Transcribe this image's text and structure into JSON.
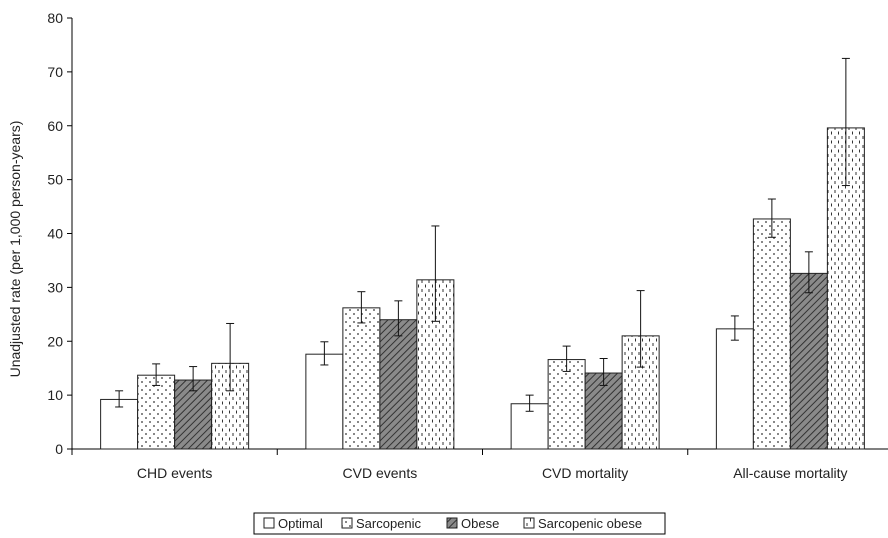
{
  "chart_data": {
    "type": "bar",
    "title": "",
    "xlabel": "",
    "ylabel": "Unadjusted rate (per 1,000 person-years)",
    "ylim": [
      0,
      80
    ],
    "yticks": [
      0,
      10,
      20,
      30,
      40,
      50,
      60,
      70,
      80
    ],
    "grid": false,
    "legend_position": "bottom",
    "categories": [
      "CHD events",
      "CVD events",
      "CVD mortality",
      "All-cause mortality"
    ],
    "series": [
      {
        "name": "Optimal",
        "pattern": "plain",
        "color": "#ffffff",
        "values": [
          9.2,
          17.6,
          8.4,
          22.3
        ],
        "error_low": [
          7.8,
          15.6,
          7.0,
          20.2
        ],
        "error_high": [
          10.8,
          19.9,
          10.0,
          24.7
        ]
      },
      {
        "name": "Sarcopenic",
        "pattern": "dots",
        "color": "#ffffff",
        "values": [
          13.7,
          26.2,
          16.6,
          42.7
        ],
        "error_low": [
          11.8,
          23.4,
          14.4,
          39.3
        ],
        "error_high": [
          15.8,
          29.2,
          19.1,
          46.4
        ]
      },
      {
        "name": "Obese",
        "pattern": "diagonal",
        "color": "#888888",
        "values": [
          12.8,
          24.0,
          14.1,
          32.6
        ],
        "error_low": [
          10.8,
          21.0,
          11.8,
          29.0
        ],
        "error_high": [
          15.3,
          27.5,
          16.8,
          36.6
        ]
      },
      {
        "name": "Sarcopenic obese",
        "pattern": "dashes",
        "color": "#ffffff",
        "values": [
          15.9,
          31.4,
          21.0,
          59.6
        ],
        "error_low": [
          10.8,
          23.7,
          15.2,
          48.9
        ],
        "error_high": [
          23.3,
          41.4,
          29.4,
          72.5
        ]
      }
    ]
  }
}
